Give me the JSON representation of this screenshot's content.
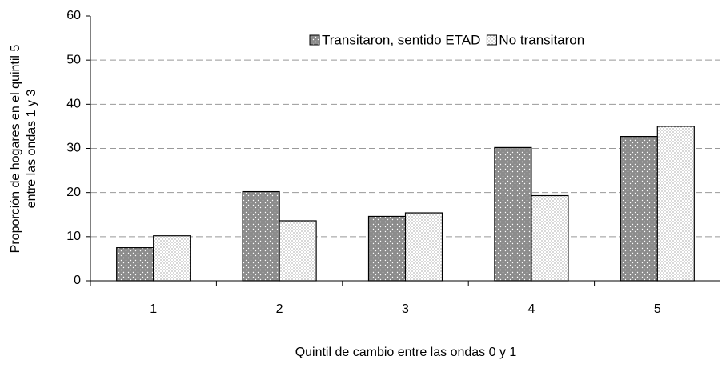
{
  "chart_data": {
    "type": "bar",
    "y_label": [
      "Proporción de hogares en el quintil 5",
      "entre las ondas 1 y 3"
    ],
    "x_label": "Quintil de cambio entre las ondas 0 y 1",
    "categories": [
      "1",
      "2",
      "3",
      "4",
      "5"
    ],
    "series": [
      {
        "name": "Transitaron, sentido ETAD",
        "color": "#8c8c8c",
        "values": [
          7.5,
          20.2,
          14.6,
          30.2,
          32.7
        ]
      },
      {
        "name": "No transitaron",
        "color": "#ffffff",
        "values": [
          10.2,
          13.6,
          15.4,
          19.3,
          35.0
        ]
      }
    ],
    "ylim": [
      0,
      60
    ],
    "yticks": [
      0,
      10,
      20,
      30,
      40,
      50,
      60
    ],
    "grid": true,
    "legend": "top-right"
  }
}
